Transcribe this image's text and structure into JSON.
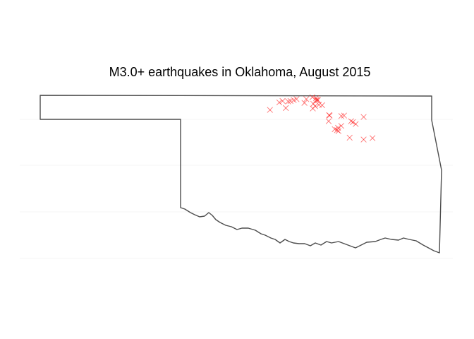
{
  "title": "M3.0+ earthquakes in Oklahoma, August 2015",
  "colors": {
    "outline": "#4d4d4d",
    "marker": "#ff0000",
    "gridline": "#ebebeb",
    "background": "#ffffff"
  },
  "marker_shape": "x",
  "chart_data": {
    "type": "scatter",
    "map_region": "Oklahoma",
    "units": "degrees longitude / latitude",
    "grid": true,
    "xlim": [
      -103.0,
      -94.4
    ],
    "ylim": [
      33.6,
      37.0
    ],
    "points": [
      {
        "lon": -97.16,
        "lat": 36.96
      },
      {
        "lon": -97.08,
        "lat": 36.94
      },
      {
        "lon": -97.29,
        "lat": 36.92
      },
      {
        "lon": -97.5,
        "lat": 36.92
      },
      {
        "lon": -97.04,
        "lat": 36.9
      },
      {
        "lon": -97.06,
        "lat": 36.9
      },
      {
        "lon": -97.08,
        "lat": 36.9
      },
      {
        "lon": -97.56,
        "lat": 36.9
      },
      {
        "lon": -97.63,
        "lat": 36.88
      },
      {
        "lon": -97.68,
        "lat": 36.87
      },
      {
        "lon": -97.8,
        "lat": 36.88
      },
      {
        "lon": -97.87,
        "lat": 36.85
      },
      {
        "lon": -97.33,
        "lat": 36.84
      },
      {
        "lon": -97.14,
        "lat": 36.82
      },
      {
        "lon": -97.02,
        "lat": 36.8
      },
      {
        "lon": -96.95,
        "lat": 36.79
      },
      {
        "lon": -97.1,
        "lat": 36.77
      },
      {
        "lon": -97.73,
        "lat": 36.73
      },
      {
        "lon": -97.15,
        "lat": 36.72
      },
      {
        "lon": -98.07,
        "lat": 36.69
      },
      {
        "lon": -96.8,
        "lat": 36.58
      },
      {
        "lon": -96.79,
        "lat": 36.57
      },
      {
        "lon": -96.54,
        "lat": 36.56
      },
      {
        "lon": -96.48,
        "lat": 36.57
      },
      {
        "lon": -96.06,
        "lat": 36.54
      },
      {
        "lon": -96.81,
        "lat": 36.45
      },
      {
        "lon": -96.33,
        "lat": 36.45
      },
      {
        "lon": -96.29,
        "lat": 36.43
      },
      {
        "lon": -96.23,
        "lat": 36.39
      },
      {
        "lon": -96.54,
        "lat": 36.35
      },
      {
        "lon": -96.61,
        "lat": 36.31
      },
      {
        "lon": -96.68,
        "lat": 36.28
      },
      {
        "lon": -96.63,
        "lat": 36.26
      },
      {
        "lon": -96.6,
        "lat": 36.24
      },
      {
        "lon": -96.36,
        "lat": 36.1
      },
      {
        "lon": -95.87,
        "lat": 36.09
      },
      {
        "lon": -96.06,
        "lat": 36.06
      }
    ]
  }
}
